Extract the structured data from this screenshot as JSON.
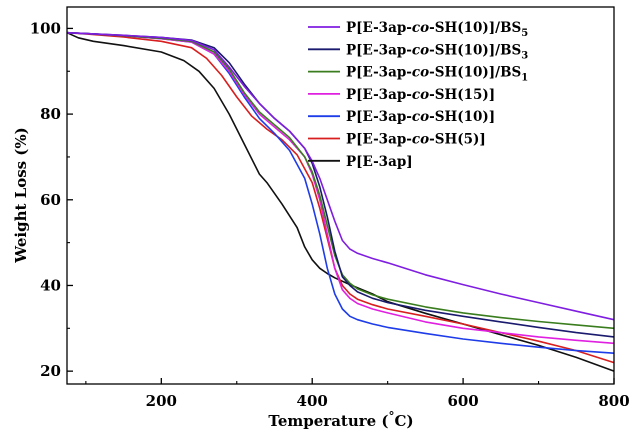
{
  "chart_data": {
    "type": "line",
    "title": "",
    "xlabel": "Temperature (°C)",
    "ylabel": "Weight Loss (%)",
    "xlim": [
      75,
      800
    ],
    "ylim": [
      17,
      105
    ],
    "xticks": [
      200,
      400,
      600,
      800
    ],
    "yticks": [
      20,
      40,
      60,
      80,
      100
    ],
    "grid": false,
    "legend_position": "top-right",
    "series": [
      {
        "name": "P[E-3ap-co-SH(10)]/BS5",
        "legend": {
          "pre": "P[E-3ap-",
          "italic": "co",
          "post": "-SH(10)]/BS",
          "sub": "5"
        },
        "color": "#7f1ee0",
        "x": [
          75,
          100,
          150,
          200,
          240,
          270,
          290,
          310,
          330,
          350,
          370,
          390,
          400,
          410,
          420,
          430,
          440,
          450,
          460,
          480,
          500,
          550,
          600,
          650,
          700,
          750,
          800
        ],
        "y": [
          99.0,
          98.8,
          98.4,
          97.9,
          97.2,
          95.0,
          91.0,
          86.5,
          82.5,
          79.0,
          76.0,
          72.0,
          69.0,
          65.0,
          60.0,
          55.0,
          50.5,
          48.5,
          47.5,
          46.3,
          45.3,
          42.5,
          40.2,
          38.0,
          36.0,
          34.0,
          32.0
        ]
      },
      {
        "name": "P[E-3ap-co-SH(10)]/BS3",
        "legend": {
          "pre": "P[E-3ap-",
          "italic": "co",
          "post": "-SH(10)]/BS",
          "sub": "3"
        },
        "color": "#1a1a6e",
        "x": [
          75,
          100,
          150,
          200,
          240,
          270,
          290,
          310,
          330,
          350,
          370,
          390,
          400,
          410,
          420,
          430,
          440,
          450,
          460,
          480,
          500,
          550,
          600,
          650,
          700,
          750,
          800
        ],
        "y": [
          99.0,
          98.8,
          98.4,
          97.9,
          97.3,
          95.5,
          92.0,
          87.0,
          82.5,
          79.0,
          76.0,
          72.0,
          68.5,
          63.0,
          56.0,
          48.0,
          42.0,
          40.0,
          38.5,
          37.0,
          36.0,
          34.2,
          32.8,
          31.5,
          30.2,
          29.0,
          28.0
        ]
      },
      {
        "name": "P[E-3ap-co-SH(10)]/BS1",
        "legend": {
          "pre": "P[E-3ap-",
          "italic": "co",
          "post": "-SH(10)]/BS",
          "sub": "1"
        },
        "color": "#3a7d1e",
        "x": [
          75,
          100,
          150,
          200,
          240,
          270,
          290,
          310,
          330,
          350,
          370,
          390,
          400,
          410,
          420,
          430,
          440,
          450,
          460,
          480,
          500,
          550,
          600,
          650,
          700,
          750,
          800
        ],
        "y": [
          99.0,
          98.8,
          98.3,
          97.7,
          97.0,
          94.5,
          90.5,
          85.0,
          80.5,
          77.5,
          74.5,
          70.0,
          66.5,
          61.0,
          54.0,
          47.0,
          42.5,
          40.5,
          39.2,
          37.8,
          36.8,
          35.0,
          33.6,
          32.5,
          31.6,
          30.8,
          30.0
        ]
      },
      {
        "name": "P[E-3ap-co-SH(15)]",
        "legend": {
          "pre": "P[E-3ap-",
          "italic": "co",
          "post": "-SH(15)]",
          "sub": ""
        },
        "color": "#e020e0",
        "x": [
          75,
          100,
          150,
          200,
          240,
          270,
          290,
          310,
          330,
          350,
          370,
          390,
          400,
          410,
          420,
          430,
          440,
          450,
          460,
          480,
          500,
          550,
          600,
          650,
          700,
          750,
          800
        ],
        "y": [
          99.0,
          98.8,
          98.3,
          97.6,
          96.8,
          94.0,
          90.0,
          84.5,
          80.0,
          77.0,
          74.0,
          70.0,
          66.0,
          60.0,
          52.0,
          44.0,
          39.0,
          37.0,
          35.8,
          34.5,
          33.6,
          31.5,
          30.0,
          29.0,
          28.0,
          27.2,
          26.5
        ]
      },
      {
        "name": "P[E-3ap-co-SH(10)]",
        "legend": {
          "pre": "P[E-3ap-",
          "italic": "co",
          "post": "-SH(10)]",
          "sub": ""
        },
        "color": "#1e3ce8",
        "x": [
          75,
          100,
          150,
          200,
          240,
          270,
          290,
          310,
          330,
          350,
          370,
          390,
          400,
          410,
          420,
          430,
          440,
          450,
          460,
          480,
          500,
          550,
          600,
          650,
          700,
          750,
          800
        ],
        "y": [
          99.0,
          98.8,
          98.3,
          97.6,
          96.8,
          94.0,
          89.5,
          84.0,
          79.0,
          75.5,
          71.5,
          65.0,
          59.0,
          52.0,
          44.0,
          38.0,
          34.5,
          32.8,
          32.0,
          31.0,
          30.2,
          28.8,
          27.5,
          26.5,
          25.6,
          24.8,
          24.2
        ]
      },
      {
        "name": "P[E-3ap-co-SH(5)]",
        "legend": {
          "pre": "P[E-3ap-",
          "italic": "co",
          "post": "-SH(5)]",
          "sub": ""
        },
        "color": "#d81e1e",
        "x": [
          75,
          100,
          150,
          200,
          240,
          260,
          280,
          300,
          320,
          340,
          360,
          380,
          400,
          410,
          420,
          430,
          440,
          450,
          460,
          480,
          500,
          550,
          600,
          650,
          700,
          750,
          800
        ],
        "y": [
          99.0,
          98.7,
          98.0,
          97.0,
          95.5,
          93.0,
          89.0,
          84.0,
          79.5,
          76.5,
          74.0,
          70.5,
          64.0,
          58.0,
          51.0,
          44.0,
          40.0,
          38.0,
          36.8,
          35.5,
          34.5,
          32.8,
          31.0,
          29.0,
          27.0,
          24.8,
          22.0
        ]
      },
      {
        "name": "P[E-3ap]",
        "legend": {
          "pre": "P[E-3ap]",
          "italic": "",
          "post": "",
          "sub": ""
        },
        "color": "#111111",
        "x": [
          75,
          90,
          110,
          150,
          200,
          230,
          250,
          270,
          290,
          310,
          330,
          340,
          360,
          380,
          390,
          400,
          410,
          420,
          430,
          450,
          480,
          500,
          550,
          600,
          650,
          700,
          750,
          800
        ],
        "y": [
          99.0,
          97.8,
          97.0,
          96.0,
          94.5,
          92.5,
          90.0,
          86.0,
          80.0,
          73.0,
          66.0,
          64.0,
          59.0,
          53.5,
          49.0,
          46.0,
          44.0,
          42.8,
          41.8,
          40.2,
          38.0,
          36.2,
          33.5,
          31.0,
          28.5,
          26.0,
          23.2,
          20.0
        ]
      }
    ]
  }
}
